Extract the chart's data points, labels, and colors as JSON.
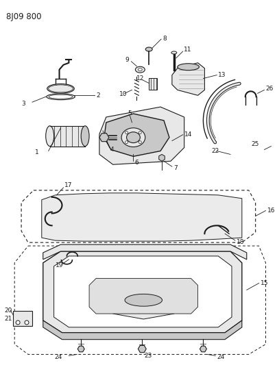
{
  "title": "8J09 800",
  "bg_color": "#ffffff",
  "line_color": "#1a1a1a",
  "fig_width": 4.04,
  "fig_height": 5.33,
  "dpi": 100
}
